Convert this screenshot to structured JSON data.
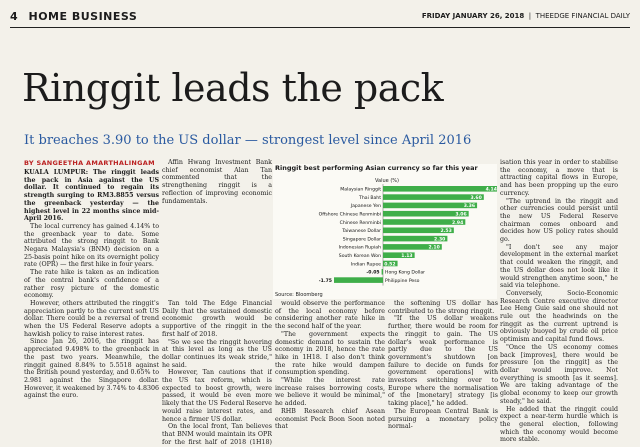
{
  "header": {
    "page_number": "4",
    "section": "HOME BUSINESS",
    "date": "FRIDAY JANUARY 26, 2018",
    "publication": "THEEDGE FINANCIAL DAILY"
  },
  "article": {
    "headline": "Ringgit leads the pack",
    "subheadline": "It breaches 3.90 to the US dollar — strongest level since April 2016",
    "byline": "BY SANGEETHA AMARTHALINGAM",
    "col1": [
      "KUALA LUMPUR: The ringgit leads the pack in Asia against the US dollar. It continued to regain its strength surging to RM3.8855 versus the greenback yesterday — the highest level in 22 months since mid-April 2016.",
      "The local currency has gained 4.14% to the greenback year to date. Some attributed the strong ringgit to Bank Negara Malaysia's (BNM) decision on a 25-basis point hike on its overnight policy rate (OPR) — the first hike in four years.",
      "The rate hike is taken as an indication of the central bank's confidence of a rather rosy picture of the domestic economy.",
      "However, others attributed the ringgit's appreciation partly to the current soft US dollar. There could be a reversal of trend when the US Federal Reserve adopts a hawkish policy to raise interest rates.",
      "Since Jan 26, 2016, the ringgit has appreciated 9.498% to the greenback in the past two years. Meanwhile, the ringgit gained 8.84% to 5.5518 against the British pound yesterday, and 0.65% to 2.981 against the Singapore dollar. However, it weakened by 3.74% to 4.8306 against the euro."
    ],
    "col2_top": [
      "Affin Hwang Investment Bank chief economist Alan Tan commented that the strengthening ringgit is a reflection of improving economic fundamentals."
    ],
    "col2_bottom": [
      "Tan told The Edge Financial Daily that the sustained domestic economic growth would be supportive of the ringgit in the first half of 2018.",
      "\"So we see the ringgit hovering at this level as long as the US dollar continues its weak stride,\" he said.",
      "However, Tan cautions that if the US tax reform, which is expected to boost growth, were passed, it would be even more likely that the US Federal Reserve would raise interest rates, and hence a firmer US dollar.",
      "On the local front, Tan believes that BNM would maintain its OPR for the first half of 2018 (1H18) and"
    ],
    "col3": [
      "would observe the performance of the local economy before considering another rate hike in the second half of the year.",
      "\"The government expects domestic demand to sustain the economy in 2018, hence the rate hike in 1H18. I also don't think the rate hike would dampen consumption spending.",
      "\"While the interest rate increase raises borrowing costs, we believe it would be minimal,\" he added.",
      "RHB Research chief Asean economist Peck Boon Soon noted that"
    ],
    "col4": [
      "the softening US dollar has contributed to the strong ringgit.",
      "\"If the US dollar weakens further, there would be room for the ringgit to gain. The US dollar's weak performance is partly due to the US government's shutdown [on failure to decide on funds for government operations] with investors switching over to Europe where the normalisation of the [monetary] strategy [is taking place],\" he added.",
      "The European Central Bank is pursuing a monetary policy normal-"
    ],
    "col5": [
      "isation this year in order to stabilise the economy, a move that is attracting capital flows in Europe, and has been propping up the euro currency.",
      "\"The uptrend in the ringgit and other currencies could persist until the new US Federal Reserve chairman comes onboard and decides how US policy rates should go.",
      "\"I don't see any major development in the external market that could weaken the ringgit, and the US dollar does not look like it would strengthen anytime soon,\" he said via telephone.",
      "Conversely, Socio-Economic Research Centre executive director Lee Heng Guie said one should not rule out the headwinds on the ringgit as the current uptrend is obviously buoyed by crude oil price optimism and capital fund flows.",
      "\"Once the US economy comes back [improves], there would be pressure [on the ringgit] as the dollar would improve. Not everything is smooth [as it seems]. We are taking advantage of the global economy to keep our growth steady,\" he said.",
      "He added that the ringgit could expect a near-term hurdle which is the general election, following which the economy would become more stable."
    ]
  },
  "chart_data": {
    "type": "bar",
    "title": "Ringgit best performing Asian currency so far this year",
    "value_label": "Value (%)",
    "source": "Source: Bloomberg",
    "categories": [
      "Malaysian Ringgit",
      "Thai Baht",
      "Japanese Yen",
      "Offshore Chinese Renminbi",
      "Chinese Renminbi",
      "Taiwanese Dollar",
      "Singapore Dollar",
      "Indonesian Rupiah",
      "South Korean Won",
      "Indian Rupee",
      "Hong Kong Dollar",
      "Philippine Peso"
    ],
    "values": [
      4.14,
      3.6,
      3.36,
      3.06,
      2.94,
      2.53,
      2.3,
      2.1,
      1.13,
      0.52,
      -0.05,
      -1.75
    ],
    "value_labels": [
      "4.14",
      "3.60",
      "3.36",
      "3.06",
      "2.94",
      "2.53",
      "2.30",
      "2.10",
      "1.13",
      "0.52",
      "-0.05",
      "-1.75"
    ],
    "bar_color": "#3fae49"
  }
}
